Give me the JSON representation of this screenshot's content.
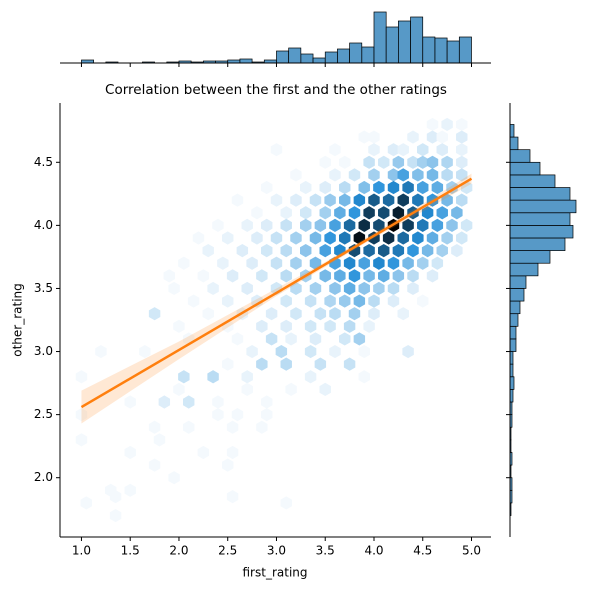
{
  "chart_data": {
    "type": "jointplot_hex",
    "title": "Correlation between the first and the other ratings",
    "xlabel": "first_rating",
    "ylabel": "other_rating",
    "xlim": [
      0.78,
      5.2
    ],
    "ylim": [
      1.53,
      4.97
    ],
    "xticks": [
      {
        "value": 1,
        "label": "1.0"
      },
      {
        "value": 1.5,
        "label": "1.5"
      },
      {
        "value": 2,
        "label": "2.0"
      },
      {
        "value": 2.5,
        "label": "2.5"
      },
      {
        "value": 3,
        "label": "3.0"
      },
      {
        "value": 3.5,
        "label": "3.5"
      },
      {
        "value": 4,
        "label": "4.0"
      },
      {
        "value": 4.5,
        "label": "4.5"
      },
      {
        "value": 5,
        "label": "5.0"
      }
    ],
    "yticks": [
      {
        "value": 2,
        "label": "2.0"
      },
      {
        "value": 2.5,
        "label": "2.5"
      },
      {
        "value": 3,
        "label": "3.0"
      },
      {
        "value": 3.5,
        "label": "3.5"
      },
      {
        "value": 4,
        "label": "4.0"
      },
      {
        "value": 4.5,
        "label": "4.5"
      }
    ],
    "color": "#1f77b4",
    "hexbin": {
      "cells": [
        [
          4.6,
          4.8,
          1
        ],
        [
          4.75,
          4.8,
          2
        ],
        [
          4.9,
          4.8,
          1
        ],
        [
          3.9,
          4.7,
          1
        ],
        [
          4.0,
          4.7,
          1
        ],
        [
          4.4,
          4.7,
          2
        ],
        [
          4.6,
          4.7,
          3
        ],
        [
          4.7,
          4.7,
          1
        ],
        [
          4.9,
          4.7,
          3
        ],
        [
          3.0,
          4.6,
          1
        ],
        [
          3.6,
          4.6,
          1
        ],
        [
          4.0,
          4.6,
          2
        ],
        [
          4.2,
          4.6,
          3
        ],
        [
          4.3,
          4.6,
          2
        ],
        [
          4.5,
          4.6,
          4
        ],
        [
          4.7,
          4.6,
          3
        ],
        [
          4.9,
          4.6,
          2
        ],
        [
          3.5,
          4.5,
          1
        ],
        [
          3.7,
          4.5,
          1
        ],
        [
          3.95,
          4.5,
          5
        ],
        [
          4.1,
          4.5,
          4
        ],
        [
          4.25,
          4.5,
          9
        ],
        [
          4.4,
          4.5,
          5
        ],
        [
          4.5,
          4.5,
          8
        ],
        [
          4.6,
          4.5,
          10
        ],
        [
          4.75,
          4.5,
          7
        ],
        [
          4.9,
          4.5,
          3
        ],
        [
          3.2,
          4.4,
          1
        ],
        [
          3.6,
          4.4,
          2
        ],
        [
          3.8,
          4.4,
          4
        ],
        [
          4.0,
          4.4,
          8
        ],
        [
          4.2,
          4.4,
          10
        ],
        [
          4.3,
          4.4,
          16
        ],
        [
          4.45,
          4.4,
          11
        ],
        [
          4.6,
          4.4,
          12
        ],
        [
          4.75,
          4.4,
          6
        ],
        [
          4.9,
          4.4,
          5
        ],
        [
          2.9,
          4.3,
          1
        ],
        [
          3.3,
          4.3,
          2
        ],
        [
          3.5,
          4.3,
          3
        ],
        [
          3.7,
          4.3,
          6
        ],
        [
          3.9,
          4.3,
          11
        ],
        [
          4.05,
          4.3,
          18
        ],
        [
          4.2,
          4.3,
          20
        ],
        [
          4.35,
          4.3,
          22
        ],
        [
          4.5,
          4.3,
          16
        ],
        [
          4.65,
          4.3,
          14
        ],
        [
          4.8,
          4.3,
          8
        ],
        [
          4.95,
          4.3,
          4
        ],
        [
          2.6,
          4.2,
          1
        ],
        [
          3.0,
          4.2,
          2
        ],
        [
          3.2,
          4.2,
          3
        ],
        [
          3.4,
          4.2,
          5
        ],
        [
          3.55,
          4.2,
          9
        ],
        [
          3.7,
          4.2,
          12
        ],
        [
          3.85,
          4.2,
          20
        ],
        [
          4.0,
          4.2,
          26
        ],
        [
          4.15,
          4.2,
          24
        ],
        [
          4.3,
          4.2,
          30
        ],
        [
          4.45,
          4.2,
          22
        ],
        [
          4.6,
          4.2,
          18
        ],
        [
          4.75,
          4.2,
          12
        ],
        [
          4.9,
          4.2,
          6
        ],
        [
          2.8,
          4.1,
          1
        ],
        [
          3.1,
          4.1,
          2
        ],
        [
          3.3,
          4.1,
          4
        ],
        [
          3.5,
          4.1,
          8
        ],
        [
          3.65,
          4.1,
          14
        ],
        [
          3.8,
          4.1,
          18
        ],
        [
          3.95,
          4.1,
          30
        ],
        [
          4.1,
          4.1,
          28
        ],
        [
          4.25,
          4.1,
          34
        ],
        [
          4.4,
          4.1,
          26
        ],
        [
          4.55,
          4.1,
          20
        ],
        [
          4.7,
          4.1,
          16
        ],
        [
          4.85,
          4.1,
          12
        ],
        [
          2.4,
          4.0,
          1
        ],
        [
          2.7,
          4.0,
          2
        ],
        [
          2.9,
          4.0,
          3
        ],
        [
          3.1,
          4.0,
          5
        ],
        [
          3.3,
          4.0,
          8
        ],
        [
          3.45,
          4.0,
          10
        ],
        [
          3.6,
          4.0,
          16
        ],
        [
          3.75,
          4.0,
          24
        ],
        [
          3.9,
          4.0,
          32
        ],
        [
          4.05,
          4.0,
          28
        ],
        [
          4.2,
          4.0,
          38
        ],
        [
          4.35,
          4.0,
          30
        ],
        [
          4.5,
          4.0,
          22
        ],
        [
          4.65,
          4.0,
          16
        ],
        [
          4.8,
          4.0,
          10
        ],
        [
          4.95,
          4.0,
          4
        ],
        [
          2.2,
          3.9,
          1
        ],
        [
          2.5,
          3.9,
          2
        ],
        [
          2.8,
          3.9,
          3
        ],
        [
          3.0,
          3.9,
          5
        ],
        [
          3.2,
          3.9,
          8
        ],
        [
          3.4,
          3.9,
          12
        ],
        [
          3.55,
          3.9,
          18
        ],
        [
          3.7,
          3.9,
          22
        ],
        [
          3.85,
          3.9,
          36
        ],
        [
          4.0,
          3.9,
          30
        ],
        [
          4.15,
          3.9,
          32
        ],
        [
          4.3,
          3.9,
          24
        ],
        [
          4.45,
          3.9,
          20
        ],
        [
          4.6,
          3.9,
          14
        ],
        [
          4.75,
          3.9,
          8
        ],
        [
          4.9,
          3.9,
          4
        ],
        [
          2.3,
          3.8,
          2
        ],
        [
          2.65,
          3.8,
          3
        ],
        [
          2.9,
          3.8,
          4
        ],
        [
          3.1,
          3.8,
          6
        ],
        [
          3.3,
          3.8,
          10
        ],
        [
          3.5,
          3.8,
          16
        ],
        [
          3.65,
          3.8,
          20
        ],
        [
          3.8,
          3.8,
          28
        ],
        [
          3.95,
          3.8,
          24
        ],
        [
          4.1,
          3.8,
          26
        ],
        [
          4.25,
          3.8,
          22
        ],
        [
          4.4,
          3.8,
          18
        ],
        [
          4.55,
          3.8,
          12
        ],
        [
          4.7,
          3.8,
          8
        ],
        [
          4.85,
          3.8,
          3
        ],
        [
          2.05,
          3.7,
          1
        ],
        [
          2.45,
          3.7,
          2
        ],
        [
          2.75,
          3.7,
          3
        ],
        [
          3.0,
          3.7,
          5
        ],
        [
          3.2,
          3.7,
          8
        ],
        [
          3.4,
          3.7,
          12
        ],
        [
          3.6,
          3.7,
          16
        ],
        [
          3.75,
          3.7,
          20
        ],
        [
          3.9,
          3.7,
          16
        ],
        [
          4.05,
          3.7,
          20
        ],
        [
          4.2,
          3.7,
          18
        ],
        [
          4.35,
          3.7,
          12
        ],
        [
          4.5,
          3.7,
          8
        ],
        [
          4.65,
          3.7,
          4
        ],
        [
          1.9,
          3.6,
          1
        ],
        [
          2.25,
          3.6,
          1
        ],
        [
          2.55,
          3.6,
          3
        ],
        [
          2.85,
          3.6,
          4
        ],
        [
          3.1,
          3.6,
          6
        ],
        [
          3.3,
          3.6,
          8
        ],
        [
          3.5,
          3.6,
          12
        ],
        [
          3.65,
          3.6,
          14
        ],
        [
          3.8,
          3.6,
          18
        ],
        [
          3.95,
          3.6,
          12
        ],
        [
          4.1,
          3.6,
          14
        ],
        [
          4.25,
          3.6,
          10
        ],
        [
          4.4,
          3.6,
          6
        ],
        [
          4.6,
          3.6,
          3
        ],
        [
          1.95,
          3.5,
          1
        ],
        [
          2.35,
          3.5,
          2
        ],
        [
          2.7,
          3.5,
          3
        ],
        [
          3.0,
          3.5,
          4
        ],
        [
          3.2,
          3.5,
          6
        ],
        [
          3.4,
          3.5,
          8
        ],
        [
          3.6,
          3.5,
          10
        ],
        [
          3.75,
          3.5,
          14
        ],
        [
          3.9,
          3.5,
          10
        ],
        [
          4.05,
          3.5,
          8
        ],
        [
          4.2,
          3.5,
          6
        ],
        [
          4.4,
          3.5,
          3
        ],
        [
          2.15,
          3.4,
          1
        ],
        [
          2.5,
          3.4,
          2
        ],
        [
          2.8,
          3.4,
          3
        ],
        [
          3.1,
          3.4,
          4
        ],
        [
          3.35,
          3.4,
          5
        ],
        [
          3.55,
          3.4,
          7
        ],
        [
          3.7,
          3.4,
          9
        ],
        [
          3.85,
          3.4,
          12
        ],
        [
          4.0,
          3.4,
          6
        ],
        [
          4.2,
          3.4,
          3
        ],
        [
          4.5,
          3.4,
          1
        ],
        [
          1.75,
          3.3,
          4
        ],
        [
          2.3,
          3.3,
          1
        ],
        [
          2.65,
          3.3,
          2
        ],
        [
          2.95,
          3.3,
          3
        ],
        [
          3.2,
          3.3,
          4
        ],
        [
          3.45,
          3.3,
          5
        ],
        [
          3.6,
          3.3,
          6
        ],
        [
          3.8,
          3.3,
          8
        ],
        [
          4.0,
          3.3,
          3
        ],
        [
          4.3,
          3.3,
          2
        ],
        [
          2.0,
          3.2,
          1
        ],
        [
          2.5,
          3.2,
          1
        ],
        [
          2.85,
          3.2,
          3
        ],
        [
          3.1,
          3.2,
          3
        ],
        [
          3.35,
          3.2,
          4
        ],
        [
          3.55,
          3.2,
          4
        ],
        [
          3.75,
          3.2,
          6
        ],
        [
          3.95,
          3.2,
          2
        ],
        [
          2.1,
          3.1,
          1
        ],
        [
          2.6,
          3.1,
          1
        ],
        [
          2.95,
          3.1,
          5
        ],
        [
          3.15,
          3.1,
          2
        ],
        [
          3.4,
          3.1,
          3
        ],
        [
          3.7,
          3.1,
          4
        ],
        [
          3.85,
          3.1,
          8
        ],
        [
          1.2,
          3.0,
          1
        ],
        [
          1.65,
          3.0,
          1
        ],
        [
          2.75,
          3.0,
          2
        ],
        [
          3.05,
          3.0,
          6
        ],
        [
          3.35,
          3.0,
          4
        ],
        [
          3.6,
          3.0,
          2
        ],
        [
          3.9,
          3.0,
          1
        ],
        [
          4.35,
          3.0,
          3
        ],
        [
          2.5,
          2.9,
          1
        ],
        [
          2.85,
          2.9,
          6
        ],
        [
          3.1,
          2.9,
          6
        ],
        [
          3.45,
          2.9,
          5
        ],
        [
          3.75,
          2.9,
          5
        ],
        [
          1.0,
          2.8,
          1
        ],
        [
          2.05,
          2.8,
          5
        ],
        [
          2.35,
          2.8,
          6
        ],
        [
          2.7,
          2.8,
          2
        ],
        [
          3.35,
          2.8,
          2
        ],
        [
          3.9,
          2.8,
          1
        ],
        [
          2.0,
          2.7,
          1
        ],
        [
          2.7,
          2.7,
          1
        ],
        [
          3.15,
          2.7,
          1
        ],
        [
          3.5,
          2.7,
          2
        ],
        [
          1.5,
          2.6,
          1
        ],
        [
          1.85,
          2.6,
          3
        ],
        [
          2.1,
          2.6,
          4
        ],
        [
          2.4,
          2.6,
          1
        ],
        [
          2.9,
          2.6,
          1
        ],
        [
          1.0,
          2.5,
          1
        ],
        [
          2.4,
          2.5,
          1
        ],
        [
          2.6,
          2.5,
          1
        ],
        [
          2.9,
          2.5,
          1
        ],
        [
          1.75,
          2.4,
          1
        ],
        [
          2.1,
          2.4,
          1
        ],
        [
          2.55,
          2.4,
          1
        ],
        [
          2.85,
          2.4,
          1
        ],
        [
          1.0,
          2.3,
          1
        ],
        [
          1.8,
          2.3,
          1
        ],
        [
          1.5,
          2.2,
          1
        ],
        [
          2.25,
          2.2,
          1
        ],
        [
          2.55,
          2.2,
          1
        ],
        [
          1.75,
          2.1,
          1
        ],
        [
          2.5,
          2.1,
          1
        ],
        [
          1.95,
          2.0,
          1
        ],
        [
          1.3,
          1.9,
          1
        ],
        [
          1.5,
          1.9,
          1
        ],
        [
          1.35,
          1.85,
          1
        ],
        [
          2.55,
          1.85,
          1
        ],
        [
          1.05,
          1.8,
          1
        ],
        [
          3.1,
          1.8,
          1
        ],
        [
          1.35,
          1.7,
          1
        ]
      ]
    },
    "regression": {
      "color": "#ff7f0e",
      "x": [
        1,
        5
      ],
      "y": [
        2.56,
        4.37
      ],
      "ci_x": [
        1,
        2,
        3,
        3.5,
        4,
        4.5,
        5
      ],
      "ci_lower": [
        2.43,
        2.94,
        3.44,
        3.67,
        3.9,
        4.11,
        4.33
      ],
      "ci_upper": [
        2.69,
        3.08,
        3.5,
        3.71,
        3.94,
        4.17,
        4.41
      ]
    },
    "x_marginal": {
      "bins": [
        1,
        1.125,
        1.25,
        1.375,
        1.5,
        1.625,
        1.75,
        1.875,
        2,
        2.125,
        2.25,
        2.375,
        2.5,
        2.625,
        2.75,
        2.875,
        3,
        3.125,
        3.25,
        3.375,
        3.5,
        3.625,
        3.75,
        3.875,
        4,
        4.125,
        4.25,
        4.375,
        4.5,
        4.625,
        4.75,
        4.875,
        5
      ],
      "counts": [
        3,
        0,
        1,
        0,
        0,
        1,
        0,
        1,
        2,
        1,
        2,
        2,
        3,
        4,
        1,
        3,
        12,
        15,
        9,
        5,
        11,
        14,
        20,
        16,
        51,
        36,
        42,
        46,
        26,
        25,
        22,
        26
      ],
      "ylim": [
        0,
        51
      ]
    },
    "y_marginal": {
      "bins": [
        1.7,
        1.8,
        1.9,
        2.0,
        2.1,
        2.2,
        2.3,
        2.4,
        2.5,
        2.6,
        2.7,
        2.8,
        2.9,
        3.0,
        3.1,
        3.2,
        3.3,
        3.4,
        3.5,
        3.6,
        3.7,
        3.8,
        3.9,
        4.0,
        4.1,
        4.2,
        4.3,
        4.4,
        4.5,
        4.6,
        4.7,
        4.8
      ],
      "counts": [
        1,
        2,
        2,
        1,
        2,
        1,
        1,
        2,
        2,
        3,
        4,
        3,
        3,
        6,
        6,
        8,
        10,
        14,
        16,
        28,
        40,
        55,
        63,
        60,
        66,
        60,
        45,
        30,
        20,
        8,
        4
      ],
      "xlim": [
        0,
        66
      ]
    }
  }
}
